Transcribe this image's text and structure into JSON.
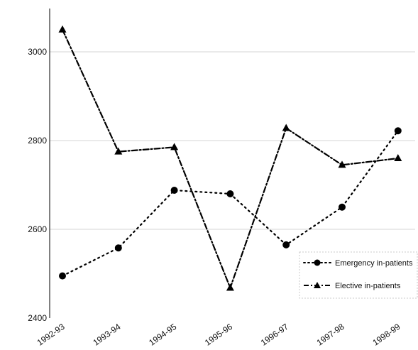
{
  "chart_data": {
    "type": "line",
    "title": "",
    "xlabel": "",
    "ylabel": "",
    "categories": [
      "1992-93",
      "1993-94",
      "1994-95",
      "1995-96",
      "1996-97",
      "1997-98",
      "1998-99"
    ],
    "ylim": [
      2400,
      3100
    ],
    "yticks": [
      2400,
      2600,
      2800,
      3000
    ],
    "grid": true,
    "legend_position": "right",
    "series": [
      {
        "name": "Emergency in-patients",
        "values": [
          2495,
          2558,
          2688,
          2680,
          2565,
          2650,
          2822
        ],
        "marker": "circle",
        "line_style": "dotted",
        "color": "#000000"
      },
      {
        "name": "Elective in-patients",
        "values": [
          3050,
          2775,
          2785,
          2468,
          2828,
          2745,
          2760
        ],
        "marker": "triangle",
        "line_style": "dash-dot",
        "color": "#000000"
      }
    ]
  }
}
